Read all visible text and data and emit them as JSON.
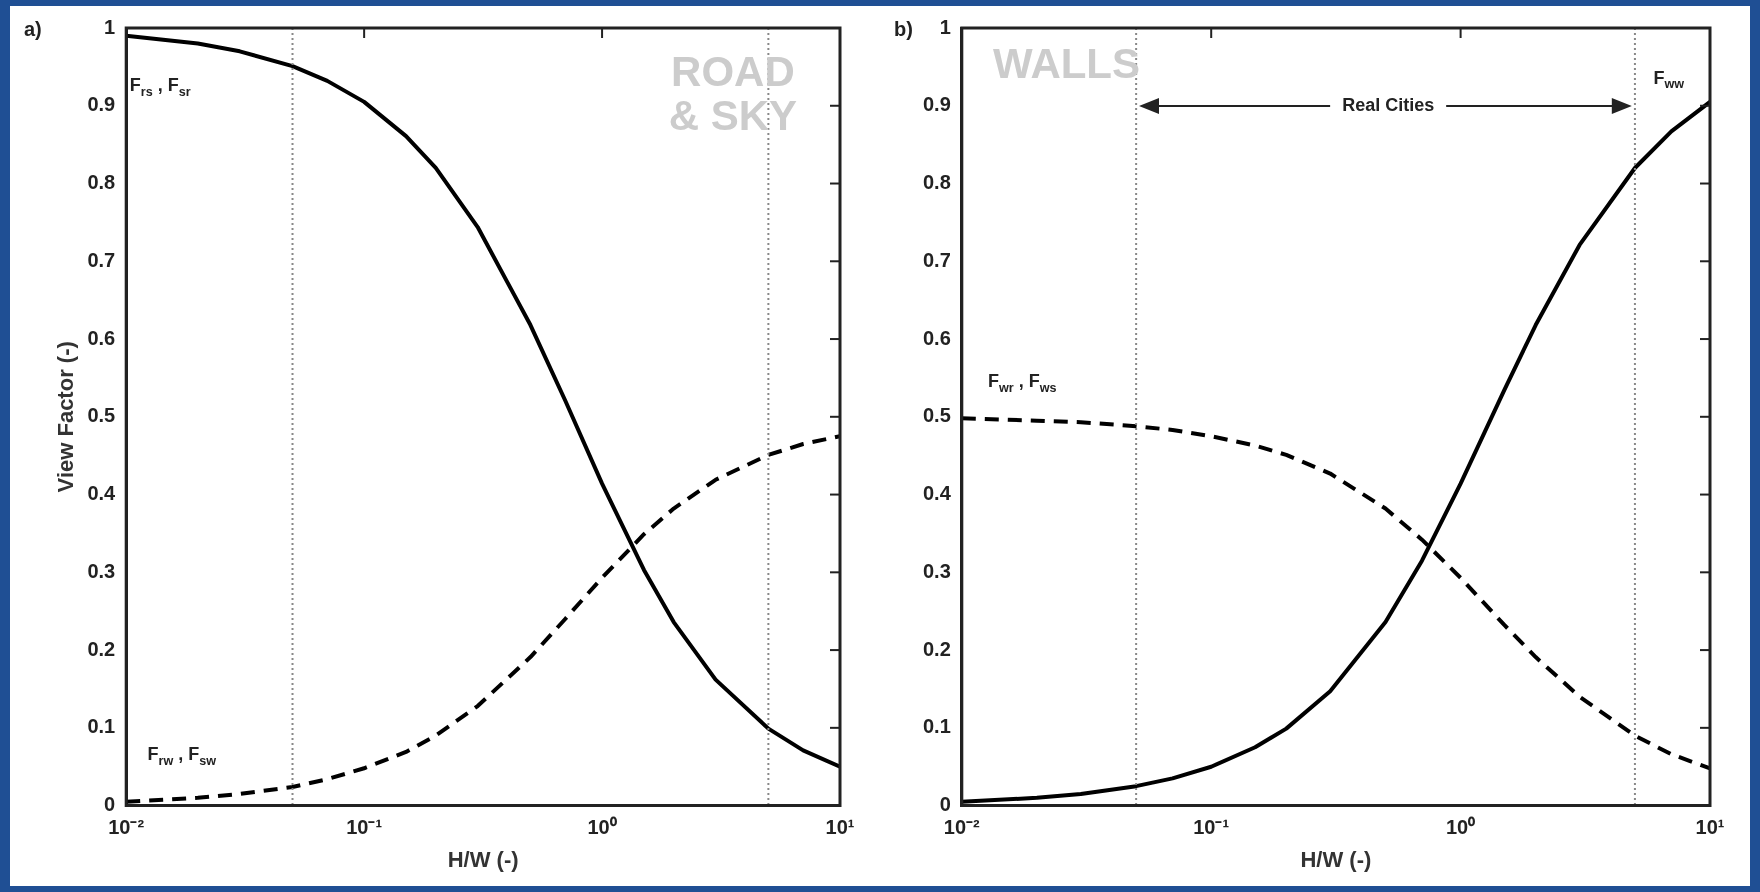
{
  "chart_data": [
    {
      "type": "line",
      "title": "a)",
      "xlabel": "H/W (-)",
      "ylabel": "View Factor (-)",
      "log": "x",
      "grid": false,
      "legend": false,
      "marker": "none",
      "x": [
        0.01,
        0.02,
        0.03,
        0.05,
        0.07,
        0.1,
        0.15,
        0.2,
        0.3,
        0.5,
        0.7,
        1,
        1.5,
        2,
        3,
        5,
        7,
        10
      ],
      "series": [
        {
          "color": "#000000",
          "line_style": "solid",
          "values": [
            0.99,
            0.98,
            0.97,
            0.951,
            0.932,
            0.905,
            0.861,
            0.82,
            0.744,
            0.618,
            0.521,
            0.414,
            0.303,
            0.236,
            0.162,
            0.099,
            0.071,
            0.05
          ]
        },
        {
          "color": "#000000",
          "line_style": "dashed",
          "values": [
            0.005,
            0.01,
            0.015,
            0.024,
            0.034,
            0.048,
            0.069,
            0.09,
            0.128,
            0.191,
            0.24,
            0.293,
            0.349,
            0.382,
            0.419,
            0.451,
            0.465,
            0.475
          ]
        }
      ],
      "xlim": [
        0.01,
        10
      ],
      "xticks": [
        {
          "value": 0.01,
          "label": "10⁻²"
        },
        {
          "value": 0.1,
          "label": "10⁻¹"
        },
        {
          "value": 1,
          "label": "10⁰"
        },
        {
          "value": 10,
          "label": "10¹"
        }
      ],
      "ylim": [
        0,
        1
      ],
      "yticks": [
        0,
        0.1,
        0.2,
        0.3,
        0.4,
        0.5,
        0.6,
        0.7,
        0.8,
        0.9,
        1
      ],
      "ref_lines": [
        {
          "axis": "x",
          "value": 0.05,
          "color": "#888888",
          "line_style": "dotted"
        },
        {
          "axis": "x",
          "value": 5,
          "color": "#888888",
          "line_style": "dotted"
        }
      ],
      "annotations": [
        "F$_{rs}$ , F$_{sr}$",
        "F$_{rw}$ , F$_{sw}$",
        "ROAD\n& SKY"
      ]
    },
    {
      "type": "line",
      "title": "b)",
      "xlabel": "H/W (-)",
      "log": "x",
      "grid": false,
      "legend": false,
      "marker": "none",
      "x": [
        0.01,
        0.02,
        0.03,
        0.05,
        0.07,
        0.1,
        0.15,
        0.2,
        0.3,
        0.5,
        0.7,
        1,
        1.5,
        2,
        3,
        5,
        7,
        10
      ],
      "series": [
        {
          "color": "#000000",
          "line_style": "solid",
          "values": [
            0.005,
            0.01,
            0.015,
            0.025,
            0.035,
            0.05,
            0.075,
            0.099,
            0.147,
            0.236,
            0.315,
            0.414,
            0.535,
            0.618,
            0.721,
            0.82,
            0.867,
            0.905
          ]
        },
        {
          "color": "#000000",
          "line_style": "dashed",
          "values": [
            0.498,
            0.495,
            0.493,
            0.488,
            0.483,
            0.475,
            0.463,
            0.451,
            0.427,
            0.382,
            0.342,
            0.293,
            0.232,
            0.191,
            0.14,
            0.09,
            0.066,
            0.048
          ]
        }
      ],
      "xlim": [
        0.01,
        10
      ],
      "xticks": [
        {
          "value": 0.01,
          "label": "10⁻²"
        },
        {
          "value": 0.1,
          "label": "10⁻¹"
        },
        {
          "value": 1,
          "label": "10⁰"
        },
        {
          "value": 10,
          "label": "10¹"
        }
      ],
      "ylim": [
        0,
        1
      ],
      "yticks": [
        0,
        0.1,
        0.2,
        0.3,
        0.4,
        0.5,
        0.6,
        0.7,
        0.8,
        0.9,
        1
      ],
      "ref_lines": [
        {
          "axis": "x",
          "value": 0.05,
          "color": "#888888",
          "line_style": "dotted"
        },
        {
          "axis": "x",
          "value": 5,
          "color": "#888888",
          "line_style": "dotted"
        }
      ],
      "annotations": [
        "WALLS",
        "Real Cities",
        "F$_{ww}$",
        "F$_{wr}$ , F$_{ws}$"
      ]
    }
  ]
}
